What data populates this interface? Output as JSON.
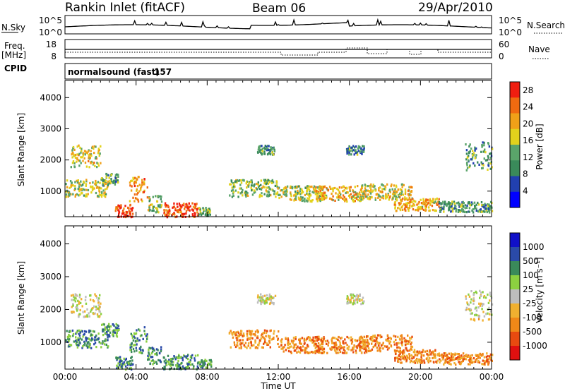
{
  "header": {
    "station": "Rankin Inlet (fitACF)",
    "beam": "Beam 06",
    "date": "29/Apr/2010"
  },
  "strip_nsky": {
    "label": "N.Sky",
    "left_ticks": [
      "10^5",
      "10^0"
    ],
    "right_label": "N.Search",
    "right_ticks": [
      "10^5",
      "10^0"
    ]
  },
  "strip_freq": {
    "label": "Freq.",
    "unit": "[MHz]",
    "left_ticks": [
      "18",
      "8"
    ],
    "right_label": "Nave",
    "right_ticks": [
      "60",
      "0"
    ]
  },
  "cpid": {
    "label": "CPID",
    "mode": "normalsound (fast)",
    "id": "157"
  },
  "colors": {
    "power_scale": [
      "#0000ff",
      "#2140b0",
      "#3a8a5a",
      "#5aa46a",
      "#e2d21c",
      "#f0a018",
      "#f06a10",
      "#f01e10"
    ],
    "velocity_scale": [
      "#e01010",
      "#e84a10",
      "#f08818",
      "#f0b030",
      "#bdbdbd",
      "#8cd040",
      "#3a8a5a",
      "#2a4aa8",
      "#1010c8"
    ]
  },
  "chart_data": [
    {
      "type": "heatmap",
      "quantity": "Power",
      "ylabel": "Slant Range [km]",
      "xlabel": "Time UT",
      "x_ticks": [
        "00:00",
        "04:00",
        "08:00",
        "12:00",
        "16:00",
        "20:00",
        "00:00"
      ],
      "y_ticks": [
        1000,
        2000,
        3000,
        4000
      ],
      "ylim": [
        180,
        4550
      ],
      "xlim_hours": [
        0,
        24
      ],
      "colorbar_label": "Power [dB]",
      "colorbar_ticks": [
        "4",
        "8",
        "12",
        "16",
        "20",
        "24",
        "28"
      ],
      "colorbar_range": [
        0,
        30
      ]
    },
    {
      "type": "heatmap",
      "quantity": "Velocity",
      "ylabel": "Slant Range [km]",
      "xlabel": "Time UT",
      "x_ticks": [
        "00:00",
        "04:00",
        "08:00",
        "12:00",
        "16:00",
        "20:00",
        "00:00"
      ],
      "y_ticks": [
        1000,
        2000,
        3000,
        4000
      ],
      "ylim": [
        180,
        4550
      ],
      "xlim_hours": [
        0,
        24
      ],
      "colorbar_label": "Velocity [m s⁻¹]",
      "colorbar_ticks": [
        "1000",
        "500",
        "100",
        "25",
        "-25",
        "-100",
        "-500",
        "-1000"
      ]
    }
  ]
}
